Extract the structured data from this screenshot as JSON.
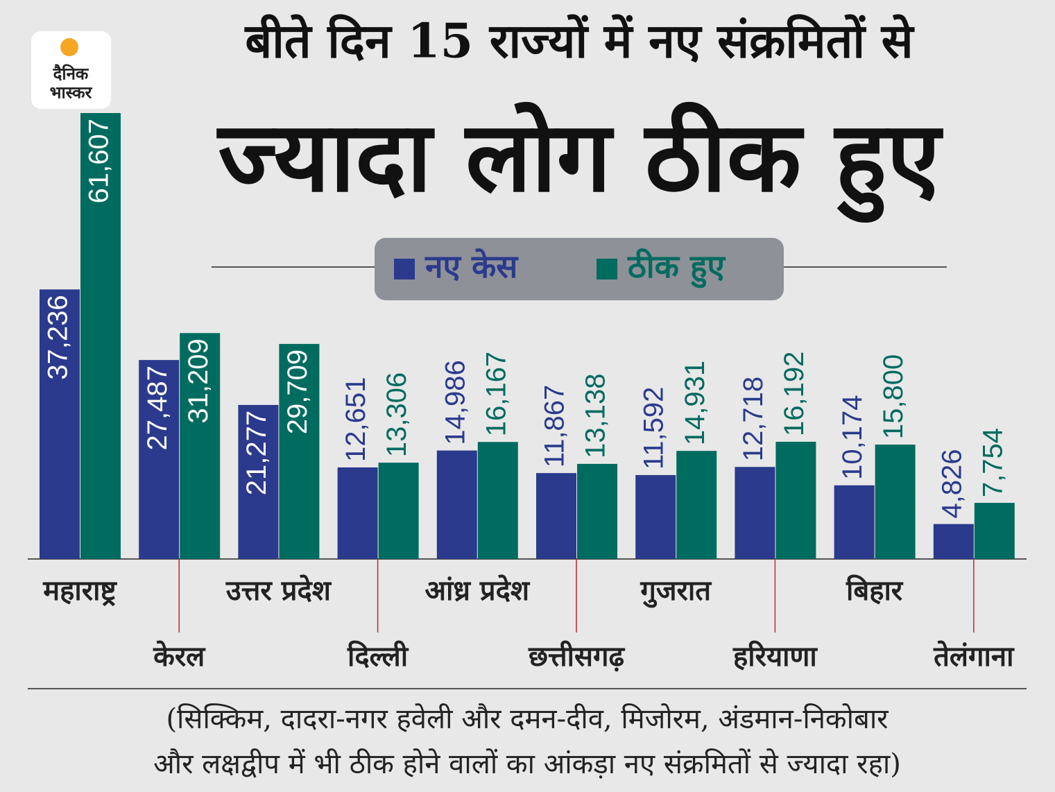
{
  "logo": {
    "line1": "दैनिक",
    "line2": "भास्कर"
  },
  "chart_data": {
    "type": "bar",
    "title": "बीते दिन 15 राज्यों में नए संक्रमितों से",
    "subtitle": "ज्यादा लोग ठीक हुए",
    "categories": [
      "महाराष्ट्र",
      "केरल",
      "उत्तर प्रदेश",
      "दिल्ली",
      "आंध्र प्रदेश",
      "छत्तीसगढ़",
      "गुजरात",
      "हरियाणा",
      "बिहार",
      "तेलंगाना"
    ],
    "series": [
      {
        "name": "नए केस",
        "color": "#2b3a8c",
        "values": [
          37236,
          27487,
          21277,
          12651,
          14986,
          11867,
          11592,
          12718,
          10174,
          4826
        ],
        "value_labels": [
          "37,236",
          "27,487",
          "21,277",
          "12,651",
          "14,986",
          "11,867",
          "11,592",
          "12,718",
          "10,174",
          "4,826"
        ]
      },
      {
        "name": "ठीक हुए",
        "color": "#006b5f",
        "values": [
          61607,
          31209,
          29709,
          13306,
          16167,
          13138,
          14931,
          16192,
          15800,
          7754
        ],
        "value_labels": [
          "61,607",
          "31,209",
          "29,709",
          "13,306",
          "16,167",
          "13,138",
          "14,931",
          "16,192",
          "15,800",
          "7,754"
        ]
      }
    ],
    "legend": "top",
    "note": [
      "(सिक्किम, दादरा-नगर हवेली और दमन-दीव, मिजोरम, अंडमान-निकोबार",
      "और लक्षद्वीप में भी ठीक होने वालों का आंकड़ा नए संक्रमितों से ज्यादा रहा)"
    ]
  }
}
